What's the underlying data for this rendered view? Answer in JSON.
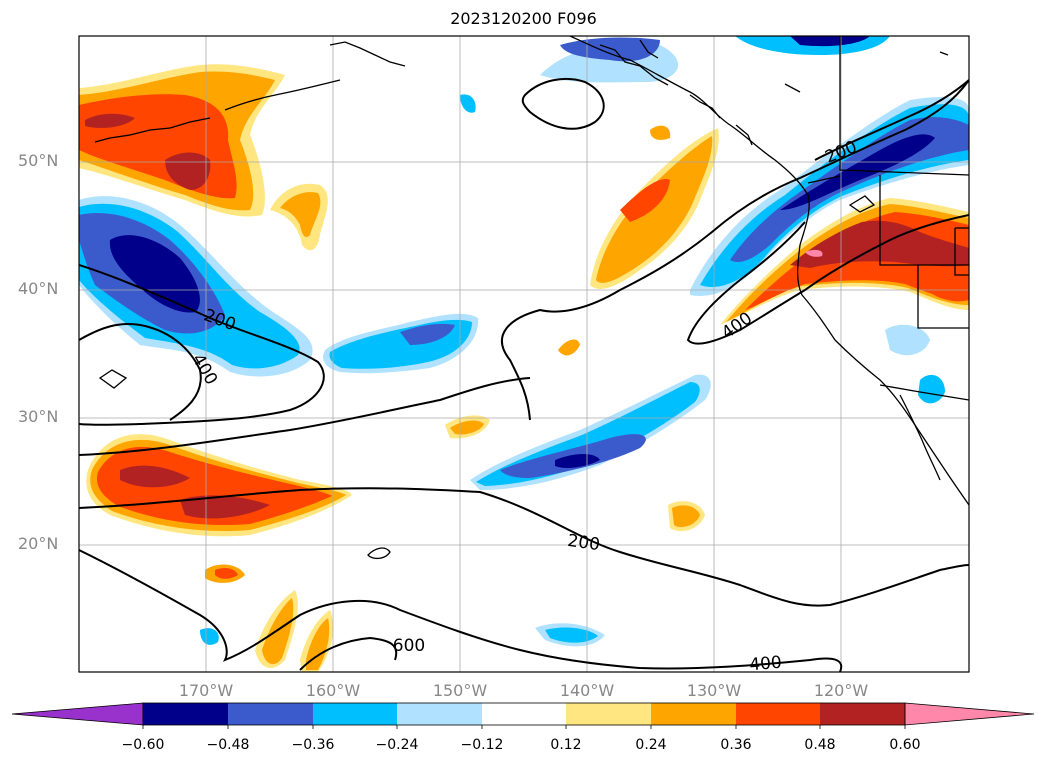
{
  "title": "2023120200 F096",
  "lat_labels": [
    "50°N",
    "40°N",
    "30°N",
    "20°N"
  ],
  "lon_labels": [
    "170°W",
    "160°W",
    "150°W",
    "140°W",
    "130°W",
    "120°W"
  ],
  "contour_labels": [
    "200",
    "200",
    "200",
    "400",
    "400",
    "400",
    "600"
  ],
  "colorbar": {
    "ticks": [
      "−0.60",
      "−0.48",
      "−0.36",
      "−0.24",
      "−0.12",
      "0.12",
      "0.24",
      "0.36",
      "0.48",
      "0.60"
    ],
    "colors": [
      "#9932cc",
      "#00008b",
      "#3b5bcc",
      "#00bfff",
      "#b0e2ff",
      "#ffffff",
      "#ffe680",
      "#ffa500",
      "#ff4500",
      "#b22222",
      "#ff88aa"
    ]
  },
  "colors": {
    "strong_neg": "#00008b",
    "mid_neg": "#3b5bcc",
    "neg": "#00bfff",
    "weak_neg": "#b0e2ff",
    "weak_pos": "#ffe680",
    "pos": "#ffa500",
    "mid_pos": "#ff4500",
    "strong_pos": "#b22222",
    "extreme_pos": "#ff88aa"
  }
}
